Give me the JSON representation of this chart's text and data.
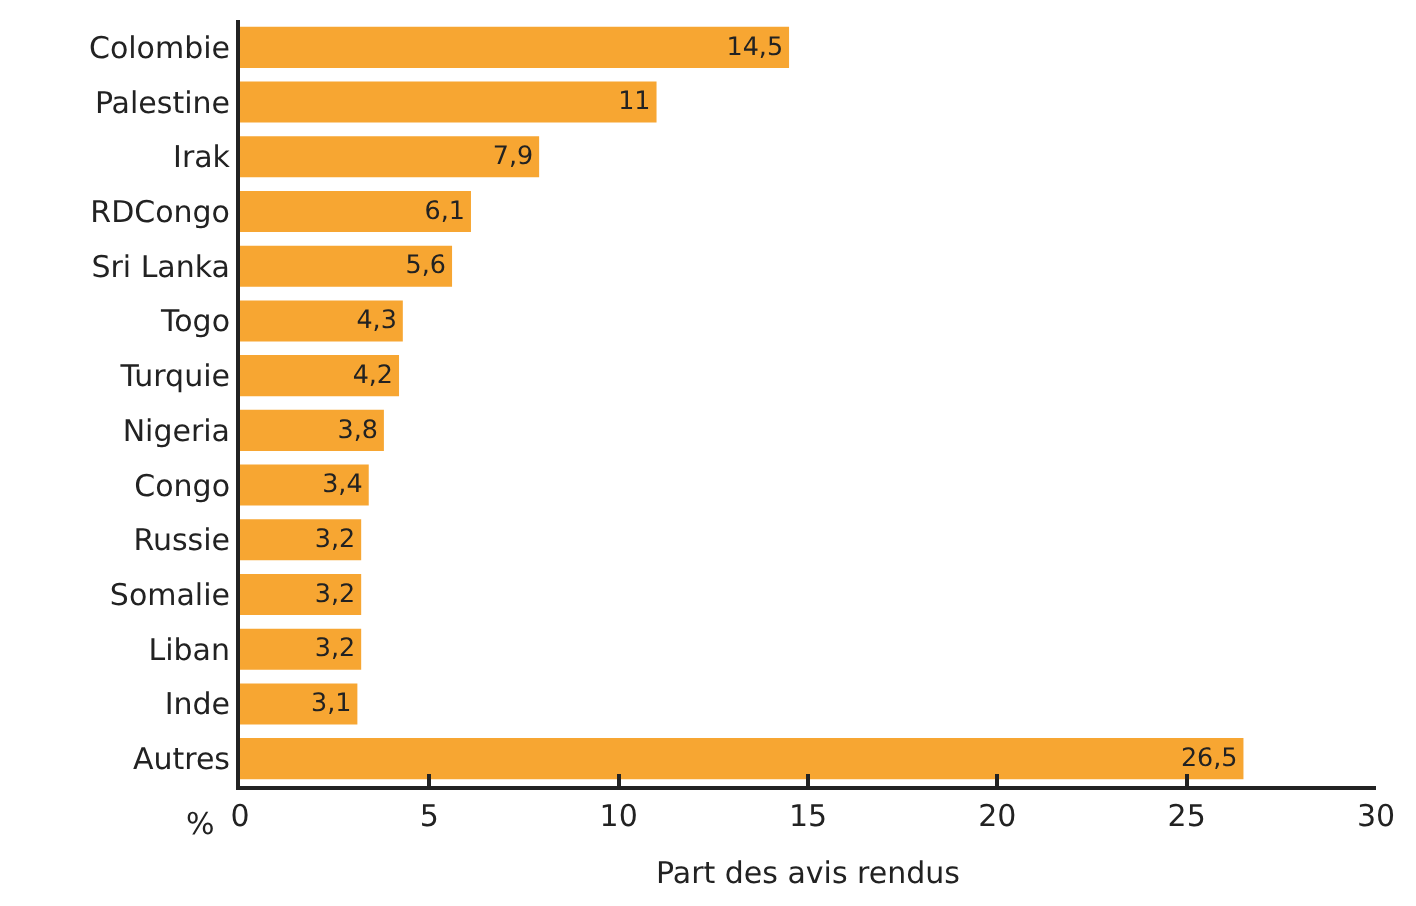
{
  "chart_data": {
    "type": "bar",
    "orientation": "horizontal",
    "xlabel": "Part des avis rendus",
    "categories": [
      "Colombie",
      "Palestine",
      "Irak",
      "RDCongo",
      "Sri Lanka",
      "Togo",
      "Turquie",
      "Nigeria",
      "Congo",
      "Russie",
      "Somalie",
      "Liban",
      "Inde",
      "Autres"
    ],
    "values": [
      14.5,
      11,
      7.9,
      6.1,
      5.6,
      4.3,
      4.2,
      3.8,
      3.4,
      3.2,
      3.2,
      3.2,
      3.1,
      26.5
    ],
    "value_labels": [
      "14,5",
      "11",
      "7,9",
      "6,1",
      "5,6",
      "4,3",
      "4,2",
      "3,8",
      "3,4",
      "3,2",
      "3,2",
      "3,2",
      "3,1",
      "26,5"
    ],
    "color": "#f7a632",
    "xlim": [
      0,
      30
    ],
    "xticks": [
      0,
      5,
      10,
      15,
      20,
      25,
      30
    ],
    "annotations": [
      "%"
    ]
  }
}
